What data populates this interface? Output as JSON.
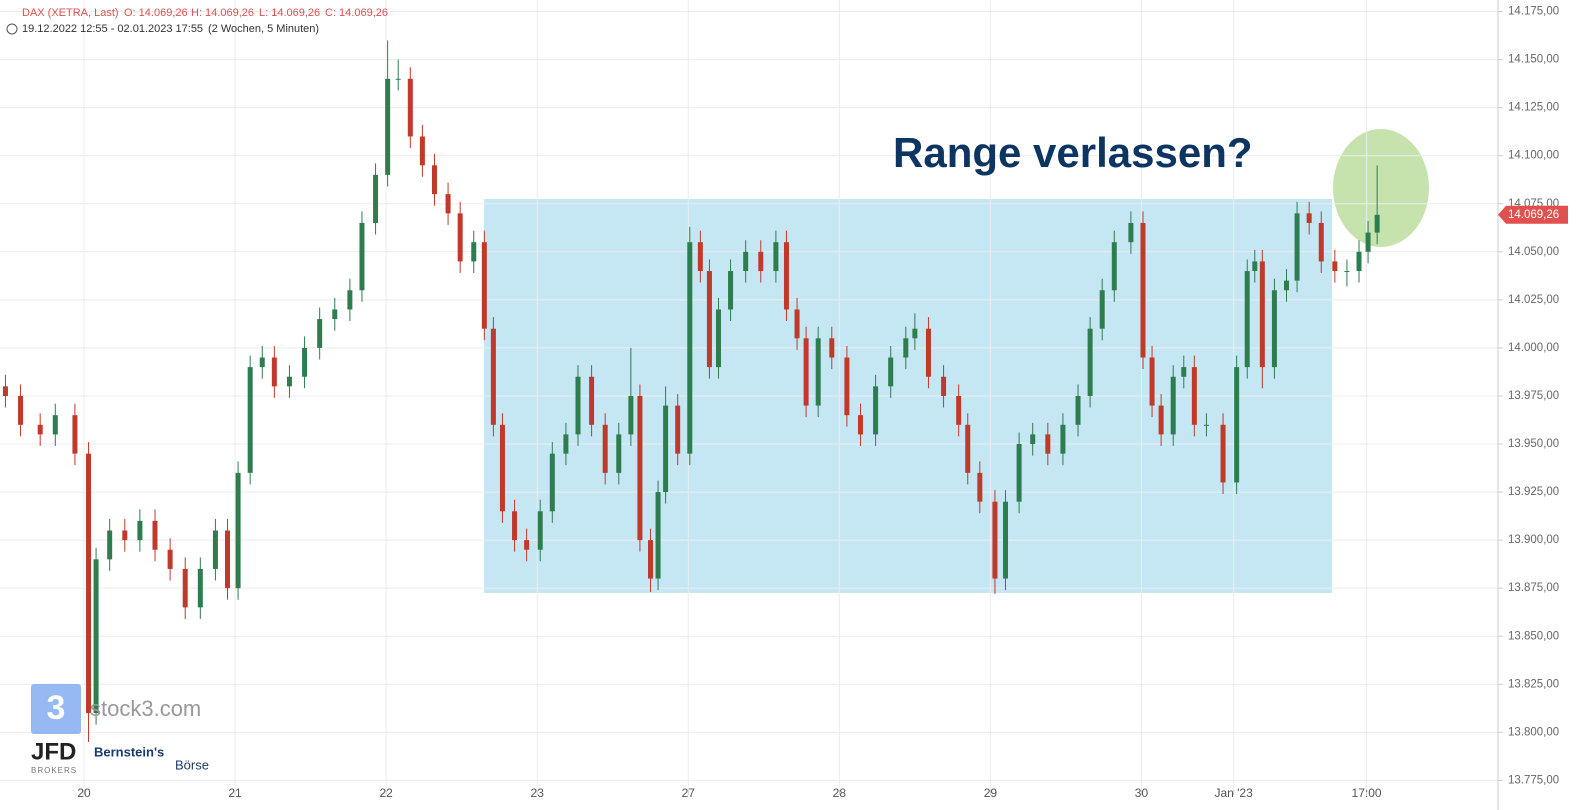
{
  "chart_data": {
    "type": "candlestick",
    "title": "DAX (XETRA, Last)",
    "ohlc_labels": [
      "O: 14.069,26",
      "H: 14.069,26",
      "L: 14.069,26",
      "C: 14.069,26"
    ],
    "period": "19.12.2022 12:55 - 02.01.2023 17:55",
    "interval": "(2 Wochen, 5 Minuten)",
    "annotation": "Range verlassen?",
    "last_price": {
      "value": 14069.26,
      "label": "14.069,26"
    },
    "logos": [
      "stock3.com",
      "JFD",
      "BROKERS",
      "Bernstein's",
      "Börse"
    ],
    "up_color": "#2e7d4f",
    "down_color": "#c0392b",
    "grid": true,
    "xlim": [
      -0.556,
      9.36
    ],
    "xticks": [
      {
        "value": 0,
        "label": "20"
      },
      {
        "value": 1,
        "label": "21"
      },
      {
        "value": 2,
        "label": "22"
      },
      {
        "value": 3,
        "label": "23"
      },
      {
        "value": 4,
        "label": "27"
      },
      {
        "value": 5,
        "label": "28"
      },
      {
        "value": 6,
        "label": "29"
      },
      {
        "value": 7,
        "label": "30"
      },
      {
        "value": 7.61,
        "label": "Jan '23"
      },
      {
        "value": 8.49,
        "label": "17:00"
      }
    ],
    "ylim": [
      13770,
      14181
    ],
    "yticks": [
      {
        "value": 13775,
        "label": "13.775,00"
      },
      {
        "value": 13800,
        "label": "13.800,00"
      },
      {
        "value": 13825,
        "label": "13.825,00"
      },
      {
        "value": 13850,
        "label": "13.850,00"
      },
      {
        "value": 13875,
        "label": "13.875,00"
      },
      {
        "value": 13900,
        "label": "13.900,00"
      },
      {
        "value": 13925,
        "label": "13.925,00"
      },
      {
        "value": 13950,
        "label": "13.950,00"
      },
      {
        "value": 13975,
        "label": "13.975,00"
      },
      {
        "value": 14000,
        "label": "14.000,00"
      },
      {
        "value": 14025,
        "label": "14.025,00"
      },
      {
        "value": 14050,
        "label": "14.050,00"
      },
      {
        "value": 14075,
        "label": "14.075,00"
      },
      {
        "value": 14100,
        "label": "14.100,00"
      },
      {
        "value": 14125,
        "label": "14.125,00"
      },
      {
        "value": 14150,
        "label": "14.150,00"
      },
      {
        "value": 14175,
        "label": "14.175,00"
      }
    ],
    "x": [
      -0.52,
      -0.42,
      -0.29,
      -0.19,
      -0.06,
      0.03,
      0.08,
      0.17,
      0.27,
      0.37,
      0.47,
      0.57,
      0.67,
      0.77,
      0.87,
      0.95,
      1.02,
      1.1,
      1.18,
      1.26,
      1.36,
      1.46,
      1.56,
      1.66,
      1.76,
      1.84,
      1.93,
      2.01,
      2.08,
      2.16,
      2.24,
      2.32,
      2.41,
      2.49,
      2.58,
      2.65,
      2.71,
      2.77,
      2.85,
      2.93,
      3.02,
      3.1,
      3.19,
      3.27,
      3.36,
      3.45,
      3.54,
      3.62,
      3.68,
      3.75,
      3.8,
      3.85,
      3.93,
      4.01,
      4.08,
      4.14,
      4.2,
      4.28,
      4.38,
      4.48,
      4.58,
      4.65,
      4.72,
      4.78,
      4.86,
      4.95,
      5.05,
      5.14,
      5.24,
      5.34,
      5.44,
      5.5,
      5.59,
      5.69,
      5.79,
      5.85,
      5.93,
      6.03,
      6.1,
      6.19,
      6.28,
      6.38,
      6.48,
      6.58,
      6.66,
      6.74,
      6.82,
      6.93,
      7.01,
      7.07,
      7.13,
      7.21,
      7.28,
      7.35,
      7.43,
      7.54,
      7.63,
      7.7,
      7.75,
      7.8,
      7.88,
      7.96,
      8.03,
      8.11,
      8.19,
      8.28,
      8.36,
      8.44,
      8.5,
      8.56
    ],
    "open": [
      13980,
      13975,
      13960,
      13955,
      13965,
      13945,
      13810,
      13890,
      13905,
      13900,
      13910,
      13895,
      13885,
      13865,
      13885,
      13905,
      13875,
      13935,
      13990,
      13995,
      13980,
      13985,
      14000,
      14015,
      14020,
      14030,
      14065,
      14090,
      14140,
      14140,
      14110,
      14095,
      14080,
      14070,
      14045,
      14055,
      14010,
      13960,
      13915,
      13900,
      13895,
      13915,
      13945,
      13955,
      13985,
      13960,
      13935,
      13955,
      13975,
      13900,
      13880,
      13925,
      13970,
      13945,
      14055,
      14040,
      13990,
      14020,
      14040,
      14050,
      14040,
      14055,
      14020,
      14005,
      13970,
      14005,
      13995,
      13965,
      13955,
      13980,
      13995,
      14005,
      14010,
      13985,
      13975,
      13960,
      13935,
      13920,
      13880,
      13920,
      13950,
      13955,
      13945,
      13960,
      13975,
      14010,
      14030,
      14055,
      14065,
      13995,
      13970,
      13955,
      13985,
      13990,
      13960,
      13960,
      13930,
      13990,
      14040,
      14045,
      13990,
      14030,
      14035,
      14070,
      14065,
      14045,
      14040,
      14040,
      14050,
      14060
    ],
    "high": [
      13986,
      13981,
      13966,
      13971,
      13971,
      13951,
      13896,
      13911,
      13911,
      13916,
      13916,
      13901,
      13891,
      13891,
      13911,
      13911,
      13941,
      13996,
      14001,
      14001,
      13991,
      14006,
      14021,
      14026,
      14036,
      14071,
      14096,
      14160,
      14150,
      14146,
      14116,
      14101,
      14086,
      14076,
      14061,
      14061,
      14016,
      13966,
      13921,
      13906,
      13921,
      13951,
      13961,
      13991,
      13991,
      13966,
      13961,
      14000,
      13981,
      13906,
      13931,
      13980,
      13976,
      14063,
      14061,
      14046,
      14026,
      14046,
      14056,
      14056,
      14061,
      14061,
      14026,
      14011,
      14011,
      14011,
      14001,
      13971,
      13986,
      14001,
      14011,
      14018,
      14016,
      13991,
      13981,
      13966,
      13941,
      13926,
      13926,
      13956,
      13961,
      13961,
      13966,
      13981,
      14016,
      14036,
      14061,
      14071,
      14071,
      14001,
      13976,
      13991,
      13996,
      13996,
      13966,
      13966,
      13996,
      14046,
      14051,
      14051,
      14036,
      14041,
      14076,
      14076,
      14071,
      14051,
      14046,
      14056,
      14066,
      14095
    ],
    "low": [
      13969,
      13954,
      13949,
      13949,
      13939,
      13795,
      13804,
      13884,
      13894,
      13894,
      13889,
      13879,
      13859,
      13859,
      13879,
      13869,
      13869,
      13929,
      13984,
      13974,
      13974,
      13979,
      13994,
      14009,
      14014,
      14024,
      14059,
      14084,
      14134,
      14104,
      14089,
      14074,
      14064,
      14039,
      14039,
      14004,
      13954,
      13909,
      13894,
      13889,
      13889,
      13909,
      13939,
      13949,
      13954,
      13929,
      13929,
      13949,
      13894,
      13873,
      13874,
      13919,
      13939,
      13939,
      14034,
      13984,
      13984,
      14014,
      14034,
      14034,
      14034,
      14014,
      13999,
      13964,
      13964,
      13989,
      13959,
      13949,
      13949,
      13974,
      13989,
      13999,
      13979,
      13969,
      13954,
      13929,
      13914,
      13872,
      13874,
      13914,
      13944,
      13939,
      13939,
      13954,
      13969,
      14004,
      14024,
      14049,
      13989,
      13964,
      13949,
      13949,
      13979,
      13954,
      13954,
      13924,
      13924,
      13984,
      14034,
      13979,
      13984,
      14024,
      14029,
      14059,
      14039,
      14034,
      14032,
      14034,
      14044,
      14054
    ],
    "close": [
      13975,
      13960,
      13955,
      13965,
      13945,
      13810,
      13890,
      13905,
      13900,
      13910,
      13895,
      13885,
      13865,
      13885,
      13905,
      13875,
      13935,
      13990,
      13995,
      13980,
      13985,
      14000,
      14015,
      14020,
      14030,
      14065,
      14090,
      14140,
      14140,
      14110,
      14095,
      14080,
      14070,
      14045,
      14055,
      14010,
      13960,
      13915,
      13900,
      13895,
      13915,
      13945,
      13955,
      13985,
      13960,
      13935,
      13955,
      13975,
      13900,
      13880,
      13925,
      13970,
      13945,
      14055,
      14040,
      13990,
      14020,
      14040,
      14050,
      14040,
      14055,
      14020,
      14005,
      13970,
      14005,
      13995,
      13965,
      13955,
      13980,
      13995,
      14005,
      14010,
      13985,
      13975,
      13960,
      13935,
      13920,
      13880,
      13920,
      13950,
      13955,
      13945,
      13960,
      13975,
      14010,
      14030,
      14055,
      14065,
      13995,
      13970,
      13955,
      13985,
      13990,
      13960,
      13960,
      13930,
      13990,
      14040,
      14045,
      13990,
      14030,
      14035,
      14070,
      14065,
      14045,
      14040,
      14040,
      14050,
      14060,
      14069.26
    ]
  }
}
